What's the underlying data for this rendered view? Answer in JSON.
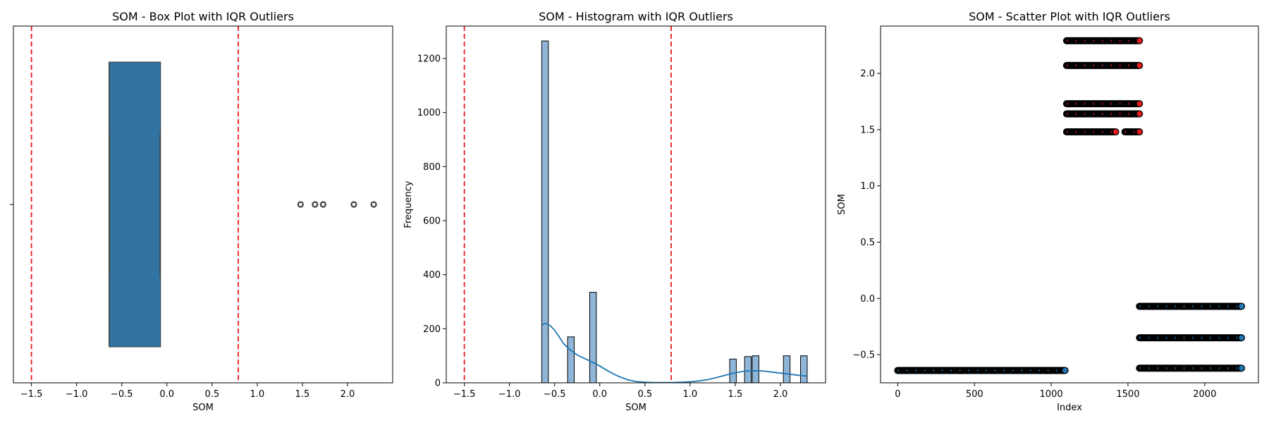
{
  "chart_data": [
    {
      "type": "box",
      "title": "SOM - Box Plot with IQR Outliers",
      "xlabel": "SOM",
      "ylabel": "",
      "xlim": [
        -1.7,
        2.5
      ],
      "xticks": [
        -1.5,
        -1.0,
        -0.5,
        0.0,
        0.5,
        1.0,
        1.5,
        2.0
      ],
      "xtick_labels": [
        "−1.5",
        "−1.0",
        "−0.5",
        "0.0",
        "0.5",
        "1.0",
        "1.5",
        "2.0"
      ],
      "box": {
        "q1": -0.64,
        "median": -0.64,
        "q3": -0.07,
        "whisker_low": -0.64,
        "whisker_high": -0.07
      },
      "outliers": [
        1.48,
        1.64,
        1.73,
        2.07,
        2.29
      ],
      "bounds": [
        -1.5,
        0.79
      ],
      "box_color": "#3274a1",
      "bound_color": "#e41a1c"
    },
    {
      "type": "bar",
      "subtype": "histogram",
      "title": "SOM - Histogram with IQR Outliers",
      "xlabel": "SOM",
      "ylabel": "Frequency",
      "xlim": [
        -1.7,
        2.5
      ],
      "ylim": [
        0,
        1320
      ],
      "xticks": [
        -1.5,
        -1.0,
        -0.5,
        0.0,
        0.5,
        1.0,
        1.5,
        2.0
      ],
      "xtick_labels": [
        "−1.5",
        "−1.0",
        "−0.5",
        "0.0",
        "0.5",
        "1.0",
        "1.5",
        "2.0"
      ],
      "yticks": [
        0,
        200,
        400,
        600,
        800,
        1000,
        1200
      ],
      "ytick_labels": [
        "0",
        "200",
        "400",
        "600",
        "800",
        "1000",
        "1200"
      ],
      "bin_width": 0.0734,
      "bars": [
        {
          "center": -0.606,
          "count": 1265
        },
        {
          "center": -0.32,
          "count": 170
        },
        {
          "center": -0.075,
          "count": 335
        },
        {
          "center": 1.475,
          "count": 88
        },
        {
          "center": 1.64,
          "count": 97
        },
        {
          "center": 1.725,
          "count": 100
        },
        {
          "center": 2.07,
          "count": 100
        },
        {
          "center": 2.26,
          "count": 100
        }
      ],
      "kde": {
        "x": [
          -0.64,
          -0.6,
          -0.55,
          -0.5,
          -0.45,
          -0.4,
          -0.35,
          -0.3,
          -0.25,
          -0.2,
          -0.15,
          -0.1,
          -0.05,
          0.0,
          0.1,
          0.2,
          0.3,
          0.4,
          0.5,
          0.6,
          0.7,
          0.8,
          0.9,
          1.0,
          1.1,
          1.2,
          1.3,
          1.4,
          1.5,
          1.6,
          1.7,
          1.8,
          1.9,
          2.0,
          2.1,
          2.2,
          2.29
        ],
        "y": [
          215,
          220,
          212,
          195,
          170,
          145,
          128,
          115,
          103,
          95,
          87,
          79,
          71,
          62,
          42,
          25,
          12,
          5,
          2,
          1,
          1,
          1,
          2,
          4,
          7,
          12,
          20,
          29,
          37,
          43,
          45,
          44,
          40,
          36,
          32,
          28,
          25
        ]
      },
      "bounds": [
        -1.5,
        0.79
      ],
      "bar_color": "#8fb6d8",
      "kde_color": "#1f77b4",
      "bound_color": "#e41a1c"
    },
    {
      "type": "scatter",
      "title": "SOM - Scatter Plot with IQR Outliers",
      "xlabel": "Index",
      "ylabel": "SOM",
      "xlim": [
        -112,
        2350
      ],
      "ylim": [
        -0.75,
        2.42
      ],
      "xticks": [
        0,
        500,
        1000,
        1500,
        2000
      ],
      "xtick_labels": [
        "0",
        "500",
        "1000",
        "1500",
        "2000"
      ],
      "yticks": [
        -0.5,
        0.0,
        0.5,
        1.0,
        1.5,
        2.0
      ],
      "ytick_labels": [
        "−0.5",
        "0.0",
        "0.5",
        "1.0",
        "1.5",
        "2.0"
      ],
      "segments": [
        {
          "x_start": 0,
          "x_end": 1090,
          "y": -0.64,
          "outlier": false
        },
        {
          "x_start": 1100,
          "x_end": 1575,
          "y": 2.29,
          "outlier": true
        },
        {
          "x_start": 1100,
          "x_end": 1575,
          "y": 2.07,
          "outlier": true
        },
        {
          "x_start": 1100,
          "x_end": 1575,
          "y": 1.73,
          "outlier": true
        },
        {
          "x_start": 1100,
          "x_end": 1575,
          "y": 1.64,
          "outlier": true
        },
        {
          "x_start": 1100,
          "x_end": 1420,
          "y": 1.48,
          "outlier": true
        },
        {
          "x_start": 1480,
          "x_end": 1575,
          "y": 1.48,
          "outlier": true
        },
        {
          "x_start": 1575,
          "x_end": 2240,
          "y": -0.07,
          "outlier": false
        },
        {
          "x_start": 1575,
          "x_end": 2240,
          "y": -0.35,
          "outlier": false
        },
        {
          "x_start": 1575,
          "x_end": 2240,
          "y": -0.62,
          "outlier": false
        }
      ],
      "inlier_color": "#1f77b4",
      "outlier_color": "#e41a1c"
    }
  ]
}
